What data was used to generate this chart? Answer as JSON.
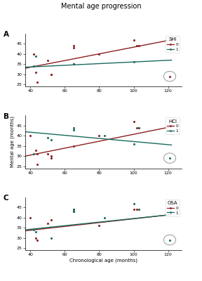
{
  "title": "Mental age progression",
  "xlabel": "Chronological age (months)",
  "ylabel": "Mental age (months)",
  "xlim": [
    37,
    128
  ],
  "ylim": [
    24,
    50
  ],
  "xticks": [
    40,
    60,
    80,
    100,
    120
  ],
  "yticks": [
    25,
    30,
    35,
    40,
    45
  ],
  "color_0": "#8B2020",
  "color_1": "#1a6b5e",
  "panels": [
    {
      "label": "A",
      "legend_title": "SHI",
      "data_0": [
        [
          42,
          40
        ],
        [
          43,
          31
        ],
        [
          44,
          26
        ],
        [
          50,
          37
        ],
        [
          52,
          30
        ],
        [
          52,
          30
        ],
        [
          65,
          43
        ],
        [
          65,
          44
        ],
        [
          65,
          35
        ],
        [
          80,
          40
        ],
        [
          100,
          47
        ],
        [
          102,
          44
        ],
        [
          103,
          44
        ]
      ],
      "data_1": [
        [
          42,
          34
        ],
        [
          43,
          39
        ],
        [
          65,
          35
        ],
        [
          100,
          36
        ]
      ],
      "line_0": [
        37,
        33.0,
        122,
        47.0
      ],
      "line_1": [
        37,
        33.5,
        122,
        37.0
      ],
      "outlier_x": 121,
      "outlier_y": 29,
      "outlier_color": 0
    },
    {
      "label": "B",
      "legend_title": "HCI",
      "data_0": [
        [
          40,
          40
        ],
        [
          43,
          33
        ],
        [
          44,
          31
        ],
        [
          50,
          31
        ],
        [
          52,
          30
        ],
        [
          52,
          29
        ],
        [
          44,
          26
        ],
        [
          65,
          35
        ],
        [
          80,
          40
        ],
        [
          100,
          47
        ],
        [
          102,
          44
        ],
        [
          103,
          44
        ]
      ],
      "data_1": [
        [
          42,
          31
        ],
        [
          50,
          39
        ],
        [
          52,
          38
        ],
        [
          65,
          43
        ],
        [
          65,
          44
        ],
        [
          83,
          40
        ],
        [
          100,
          36
        ],
        [
          103,
          44
        ]
      ],
      "line_0": [
        37,
        30.0,
        122,
        44.5
      ],
      "line_1": [
        37,
        42.0,
        122,
        35.5
      ],
      "outlier_x": 121,
      "outlier_y": 29,
      "outlier_color": 1
    },
    {
      "label": "C",
      "legend_title": "OSA",
      "data_0": [
        [
          40,
          40
        ],
        [
          43,
          30
        ],
        [
          44,
          29
        ],
        [
          50,
          37
        ],
        [
          52,
          39
        ],
        [
          65,
          43
        ],
        [
          65,
          44
        ],
        [
          80,
          36
        ],
        [
          100,
          44
        ],
        [
          102,
          44
        ]
      ],
      "data_1": [
        [
          42,
          34
        ],
        [
          43,
          33
        ],
        [
          52,
          30
        ],
        [
          65,
          43
        ],
        [
          65,
          44
        ],
        [
          83,
          40
        ],
        [
          100,
          47
        ],
        [
          103,
          44
        ]
      ],
      "line_0": [
        37,
        33.5,
        122,
        41.5
      ],
      "line_1": [
        37,
        34.0,
        122,
        41.5
      ],
      "outlier_x": 121,
      "outlier_y": 29,
      "outlier_color": 1
    }
  ]
}
